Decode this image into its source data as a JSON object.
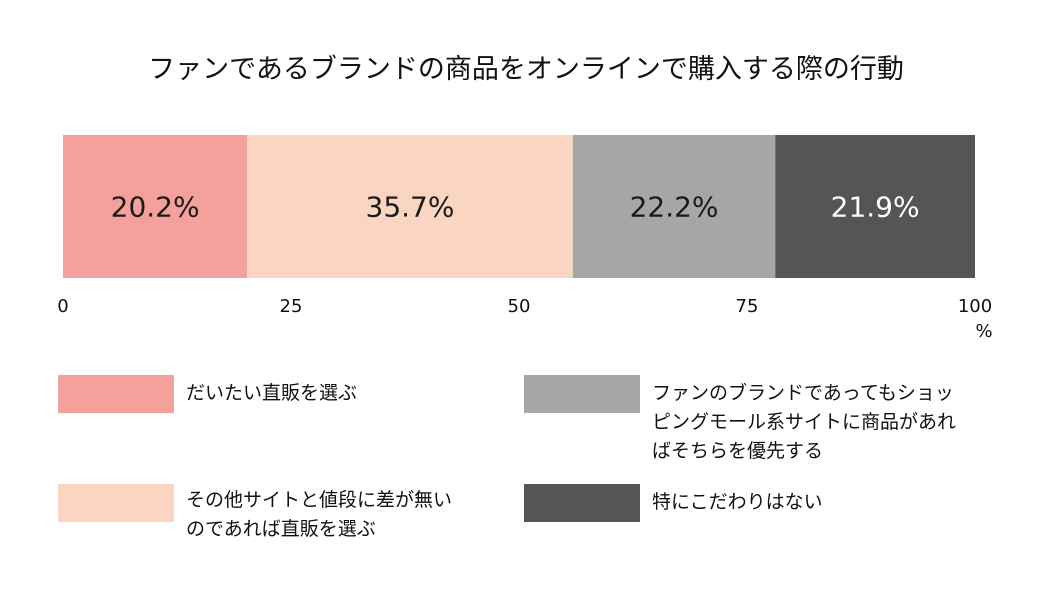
{
  "chart_data": {
    "type": "bar",
    "orientation": "horizontal",
    "stacked": true,
    "title": "ファンであるブランドの商品をオンラインで購入する際の行動",
    "unit_label": "%",
    "xlim": [
      0,
      100
    ],
    "x_ticks": [
      "0",
      "25",
      "50",
      "75",
      "100"
    ],
    "grid": false,
    "legend_position": "bottom",
    "series": [
      {
        "name": "だいたい直販を選ぶ",
        "value": 20.2,
        "label": "20.2%",
        "color": "#f5a19b",
        "label_color": "#1a1a1a"
      },
      {
        "name": "その他サイトと値段に差が無いのであれば直販を選ぶ",
        "value": 35.7,
        "label": "35.7%",
        "color": "#fad5c1",
        "label_color": "#1a1a1a"
      },
      {
        "name": "ファンのブランドであってもショッピングモール系サイトに商品があればそちらを優先する",
        "value": 22.2,
        "label": "22.2%",
        "color": "#a6a6a6",
        "label_color": "#1a1a1a"
      },
      {
        "name": "特にこだわりはない",
        "value": 21.9,
        "label": "21.9%",
        "color": "#555555",
        "label_color": "#ffffff"
      }
    ]
  },
  "legend": {
    "items": [
      {
        "lines": [
          "だいたい直販を選ぶ"
        ],
        "color": "#f5a19b"
      },
      {
        "lines": [
          "その他サイトと値段に差が無い",
          "のであれば直販を選ぶ"
        ],
        "color": "#fad5c1"
      },
      {
        "lines": [
          "ファンのブランドであってもショッ",
          "ピングモール系サイトに商品があれ",
          "ばそちらを優先する"
        ],
        "color": "#a6a6a6"
      },
      {
        "lines": [
          "特にこだわりはない"
        ],
        "color": "#555555"
      }
    ]
  }
}
